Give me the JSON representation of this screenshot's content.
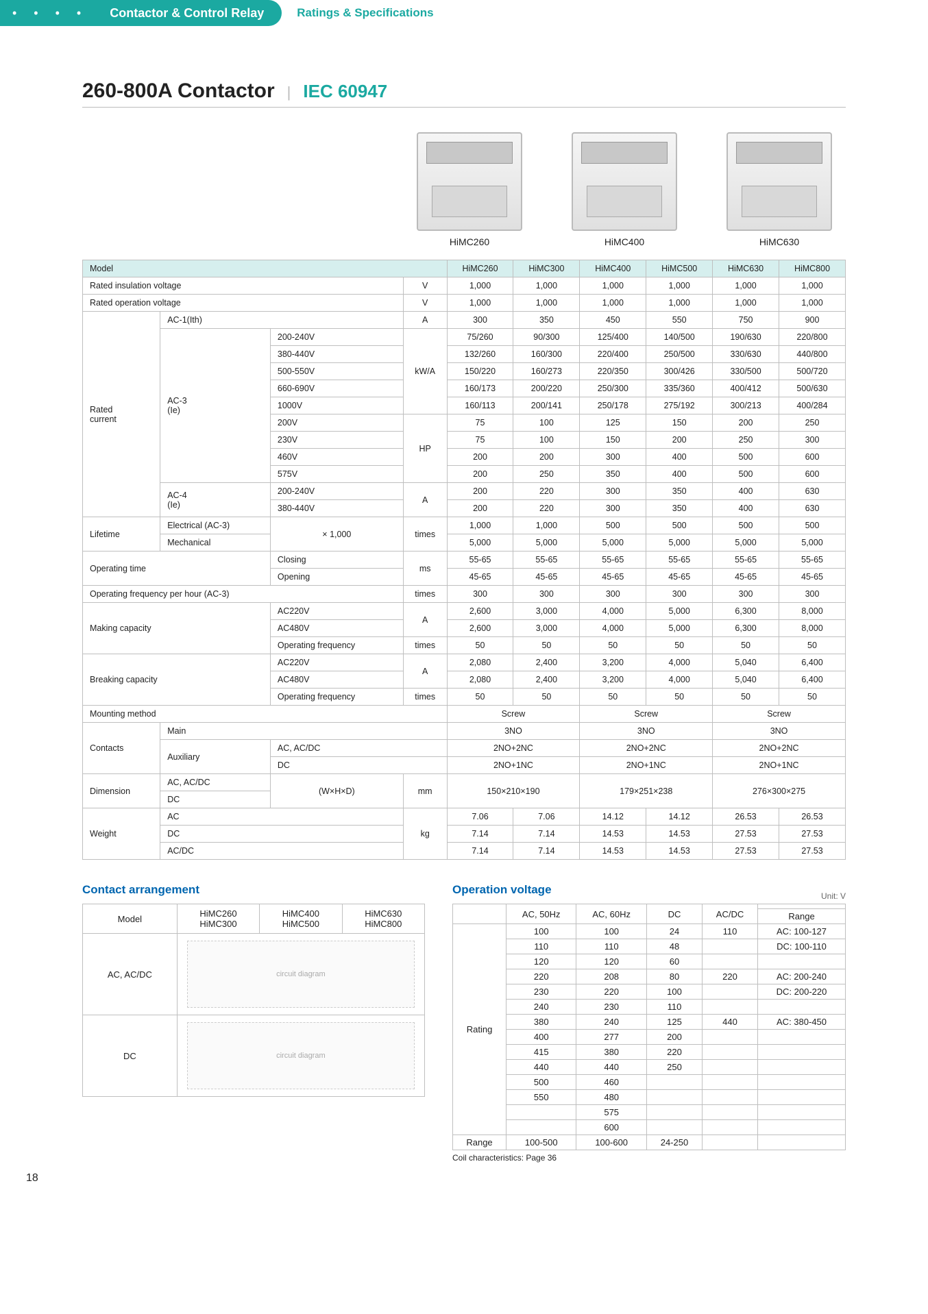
{
  "topbar": {
    "section": "Contactor & Control Relay",
    "subtitle": "Ratings & Specifications"
  },
  "title": {
    "main": "260-800A Contactor",
    "std": "IEC 60947"
  },
  "products": [
    {
      "name": "HiMC260"
    },
    {
      "name": "HiMC400"
    },
    {
      "name": "HiMC630"
    }
  ],
  "models": [
    "HiMC260",
    "HiMC300",
    "HiMC400",
    "HiMC500",
    "HiMC630",
    "HiMC800"
  ],
  "spec": {
    "riv": {
      "label": "Rated insulation voltage",
      "unit": "V",
      "v": [
        "1,000",
        "1,000",
        "1,000",
        "1,000",
        "1,000",
        "1,000"
      ]
    },
    "rov": {
      "label": "Rated operation voltage",
      "unit": "V",
      "v": [
        "1,000",
        "1,000",
        "1,000",
        "1,000",
        "1,000",
        "1,000"
      ]
    },
    "ac1": {
      "label": "AC-1(Ith)",
      "unit": "A",
      "v": [
        "300",
        "350",
        "450",
        "550",
        "750",
        "900"
      ]
    },
    "ac3": {
      "label": "AC-3\n(Ie)",
      "unit_kwa": "kW/A",
      "unit_hp": "HP",
      "kwa": [
        {
          "volt": "200-240V",
          "v": [
            "75/260",
            "90/300",
            "125/400",
            "140/500",
            "190/630",
            "220/800"
          ]
        },
        {
          "volt": "380-440V",
          "v": [
            "132/260",
            "160/300",
            "220/400",
            "250/500",
            "330/630",
            "440/800"
          ]
        },
        {
          "volt": "500-550V",
          "v": [
            "150/220",
            "160/273",
            "220/350",
            "300/426",
            "330/500",
            "500/720"
          ]
        },
        {
          "volt": "660-690V",
          "v": [
            "160/173",
            "200/220",
            "250/300",
            "335/360",
            "400/412",
            "500/630"
          ]
        },
        {
          "volt": "1000V",
          "v": [
            "160/113",
            "200/141",
            "250/178",
            "275/192",
            "300/213",
            "400/284"
          ]
        }
      ],
      "hp": [
        {
          "volt": "200V",
          "v": [
            "75",
            "100",
            "125",
            "150",
            "200",
            "250"
          ]
        },
        {
          "volt": "230V",
          "v": [
            "75",
            "100",
            "150",
            "200",
            "250",
            "300"
          ]
        },
        {
          "volt": "460V",
          "v": [
            "200",
            "200",
            "300",
            "400",
            "500",
            "600"
          ]
        },
        {
          "volt": "575V",
          "v": [
            "200",
            "250",
            "350",
            "400",
            "500",
            "600"
          ]
        }
      ]
    },
    "ac4": {
      "label": "AC-4\n(Ie)",
      "unit": "A",
      "rows": [
        {
          "volt": "200-240V",
          "v": [
            "200",
            "220",
            "300",
            "350",
            "400",
            "630"
          ]
        },
        {
          "volt": "380-440V",
          "v": [
            "200",
            "220",
            "300",
            "350",
            "400",
            "630"
          ]
        }
      ]
    },
    "life": {
      "label": "Lifetime",
      "unit_lbl": "× 1,000",
      "unit": "times",
      "rows": [
        {
          "k": "Electrical (AC-3)",
          "v": [
            "1,000",
            "1,000",
            "500",
            "500",
            "500",
            "500"
          ]
        },
        {
          "k": "Mechanical",
          "v": [
            "5,000",
            "5,000",
            "5,000",
            "5,000",
            "5,000",
            "5,000"
          ]
        }
      ]
    },
    "optime": {
      "label": "Operating time",
      "unit": "ms",
      "rows": [
        {
          "k": "Closing",
          "v": [
            "55-65",
            "55-65",
            "55-65",
            "55-65",
            "55-65",
            "55-65"
          ]
        },
        {
          "k": "Opening",
          "v": [
            "45-65",
            "45-65",
            "45-65",
            "45-65",
            "45-65",
            "45-65"
          ]
        }
      ]
    },
    "opfreq": {
      "label": "Operating frequency per hour (AC-3)",
      "unit": "times",
      "v": [
        "300",
        "300",
        "300",
        "300",
        "300",
        "300"
      ]
    },
    "make": {
      "label": "Making capacity",
      "unitA": "A",
      "rows": [
        {
          "k": "AC220V",
          "v": [
            "2,600",
            "3,000",
            "4,000",
            "5,000",
            "6,300",
            "8,000"
          ]
        },
        {
          "k": "AC480V",
          "v": [
            "2,600",
            "3,000",
            "4,000",
            "5,000",
            "6,300",
            "8,000"
          ]
        },
        {
          "k": "Operating frequency",
          "unit": "times",
          "v": [
            "50",
            "50",
            "50",
            "50",
            "50",
            "50"
          ]
        }
      ]
    },
    "break": {
      "label": "Breaking capacity",
      "unitA": "A",
      "rows": [
        {
          "k": "AC220V",
          "v": [
            "2,080",
            "2,400",
            "3,200",
            "4,000",
            "5,040",
            "6,400"
          ]
        },
        {
          "k": "AC480V",
          "v": [
            "2,080",
            "2,400",
            "3,200",
            "4,000",
            "5,040",
            "6,400"
          ]
        },
        {
          "k": "Operating frequency",
          "unit": "times",
          "v": [
            "50",
            "50",
            "50",
            "50",
            "50",
            "50"
          ]
        }
      ]
    },
    "mount": {
      "label": "Mounting method",
      "v": [
        "Screw",
        "Screw",
        "Screw"
      ]
    },
    "contacts": {
      "label": "Contacts",
      "main": {
        "k": "Main",
        "v": [
          "3NO",
          "3NO",
          "3NO"
        ]
      },
      "aux": {
        "k": "Auxiliary",
        "rows": [
          {
            "k": "AC, AC/DC",
            "v": [
              "2NO+2NC",
              "2NO+2NC",
              "2NO+2NC"
            ]
          },
          {
            "k": "DC",
            "v": [
              "2NO+1NC",
              "2NO+1NC",
              "2NO+1NC"
            ]
          }
        ]
      }
    },
    "dim": {
      "label": "Dimension",
      "k": [
        "AC, AC/DC",
        "DC"
      ],
      "hdr": "(W×H×D)",
      "unit": "mm",
      "v": [
        "150×210×190",
        "179×251×238",
        "276×300×275"
      ]
    },
    "weight": {
      "label": "Weight",
      "unit": "kg",
      "rows": [
        {
          "k": "AC",
          "v": [
            "7.06",
            "7.06",
            "14.12",
            "14.12",
            "26.53",
            "26.53"
          ]
        },
        {
          "k": "DC",
          "v": [
            "7.14",
            "7.14",
            "14.53",
            "14.53",
            "27.53",
            "27.53"
          ]
        },
        {
          "k": "AC/DC",
          "v": [
            "7.14",
            "7.14",
            "14.53",
            "14.53",
            "27.53",
            "27.53"
          ]
        }
      ]
    }
  },
  "ca": {
    "title": "Contact arrangement",
    "hdr": [
      "Model",
      "HiMC260\nHiMC300",
      "HiMC400\nHiMC500",
      "HiMC630\nHiMC800"
    ],
    "rows": [
      {
        "k": "AC, AC/DC"
      },
      {
        "k": "DC"
      }
    ]
  },
  "ov": {
    "title": "Operation voltage",
    "unit": "Unit: V",
    "hdr": [
      "AC, 50Hz",
      "AC, 60Hz",
      "DC",
      "AC/DC",
      "Range"
    ],
    "label": "Rating",
    "rows": [
      [
        "100",
        "100",
        "24",
        "110",
        "AC: 100-127"
      ],
      [
        "110",
        "110",
        "48",
        "",
        "DC: 100-110"
      ],
      [
        "120",
        "120",
        "60",
        "",
        ""
      ],
      [
        "220",
        "208",
        "80",
        "220",
        "AC: 200-240"
      ],
      [
        "230",
        "220",
        "100",
        "",
        "DC: 200-220"
      ],
      [
        "240",
        "230",
        "110",
        "",
        ""
      ],
      [
        "380",
        "240",
        "125",
        "440",
        "AC: 380-450"
      ],
      [
        "400",
        "277",
        "200",
        "",
        ""
      ],
      [
        "415",
        "380",
        "220",
        "",
        ""
      ],
      [
        "440",
        "440",
        "250",
        "",
        ""
      ],
      [
        "500",
        "460",
        "",
        "",
        ""
      ],
      [
        "550",
        "480",
        "",
        "",
        ""
      ],
      [
        "",
        "575",
        "",
        "",
        ""
      ],
      [
        "",
        "600",
        "",
        "",
        ""
      ]
    ],
    "range": {
      "label": "Range",
      "v": [
        "100-500",
        "100-600",
        "24-250",
        "",
        ""
      ]
    },
    "note": "Coil characteristics: Page 36"
  },
  "pagenum": "18"
}
